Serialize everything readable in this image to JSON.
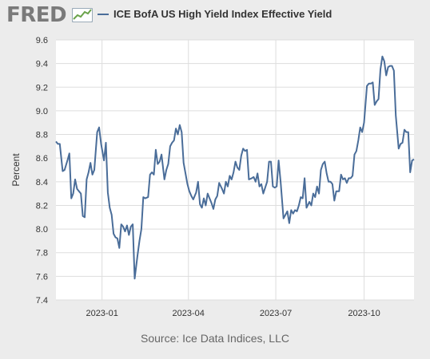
{
  "header": {
    "logo_text": "FRED",
    "legend_label": "ICE BofA US High Yield Index Effective Yield"
  },
  "source_text": "Source: Ice Data Indices, LLC",
  "colors": {
    "line": "#4a6d99",
    "grid": "#dddddd",
    "background": "#ececec",
    "plot": "#ffffff"
  },
  "icons": {
    "logo": "chart-line-icon"
  },
  "chart_data": {
    "type": "line",
    "title": "",
    "xlabel": "",
    "ylabel": "Percent",
    "ylim": [
      7.4,
      9.6
    ],
    "yticks": [
      7.4,
      7.6,
      7.8,
      8.0,
      8.2,
      8.4,
      8.6,
      8.8,
      9.0,
      9.2,
      9.4,
      9.6
    ],
    "xlim": [
      "2022-11-14",
      "2023-11-22"
    ],
    "xticks": [
      "2023-01",
      "2023-04",
      "2023-07",
      "2023-10"
    ],
    "grid": true,
    "series": [
      {
        "name": "ICE BofA US High Yield Index Effective Yield",
        "x": [
          "2022-11-14",
          "2022-11-16",
          "2022-11-18",
          "2022-11-21",
          "2022-11-23",
          "2022-11-26",
          "2022-11-28",
          "2022-11-30",
          "2022-12-02",
          "2022-12-04",
          "2022-12-06",
          "2022-12-08",
          "2022-12-10",
          "2022-12-12",
          "2022-12-14",
          "2022-12-16",
          "2022-12-18",
          "2022-12-20",
          "2022-12-22",
          "2022-12-24",
          "2022-12-27",
          "2022-12-29",
          "2022-12-31",
          "2023-01-03",
          "2023-01-05",
          "2023-01-07",
          "2023-01-09",
          "2023-01-11",
          "2023-01-13",
          "2023-01-15",
          "2023-01-17",
          "2023-01-19",
          "2023-01-21",
          "2023-01-23",
          "2023-01-25",
          "2023-01-27",
          "2023-01-29",
          "2023-01-31",
          "2023-02-02",
          "2023-02-04",
          "2023-02-07",
          "2023-02-09",
          "2023-02-11",
          "2023-02-13",
          "2023-02-15",
          "2023-02-18",
          "2023-02-20",
          "2023-02-22",
          "2023-02-24",
          "2023-02-26",
          "2023-02-28",
          "2023-03-02",
          "2023-03-04",
          "2023-03-07",
          "2023-03-09",
          "2023-03-11",
          "2023-03-13",
          "2023-03-15",
          "2023-03-17",
          "2023-03-19",
          "2023-03-21",
          "2023-03-23",
          "2023-03-25",
          "2023-03-27",
          "2023-03-29",
          "2023-03-31",
          "2023-04-02",
          "2023-04-04",
          "2023-04-06",
          "2023-04-09",
          "2023-04-11",
          "2023-04-13",
          "2023-04-15",
          "2023-04-17",
          "2023-04-19",
          "2023-04-21",
          "2023-04-23",
          "2023-04-25",
          "2023-04-27",
          "2023-04-29",
          "2023-05-01",
          "2023-05-03",
          "2023-05-06",
          "2023-05-08",
          "2023-05-10",
          "2023-05-12",
          "2023-05-14",
          "2023-05-16",
          "2023-05-18",
          "2023-05-20",
          "2023-05-22",
          "2023-05-24",
          "2023-05-26",
          "2023-05-28",
          "2023-05-30",
          "2023-06-01",
          "2023-06-03",
          "2023-06-06",
          "2023-06-08",
          "2023-06-10",
          "2023-06-12",
          "2023-06-14",
          "2023-06-16",
          "2023-06-18",
          "2023-06-20",
          "2023-06-22",
          "2023-06-24",
          "2023-06-26",
          "2023-06-28",
          "2023-06-30",
          "2023-07-02",
          "2023-07-04",
          "2023-07-06",
          "2023-07-09",
          "2023-07-11",
          "2023-07-13",
          "2023-07-15",
          "2023-07-17",
          "2023-07-19",
          "2023-07-21",
          "2023-07-23",
          "2023-07-25",
          "2023-07-27",
          "2023-07-29",
          "2023-07-31",
          "2023-08-02",
          "2023-08-05",
          "2023-08-07",
          "2023-08-09",
          "2023-08-11",
          "2023-08-13",
          "2023-08-15",
          "2023-08-17",
          "2023-08-19",
          "2023-08-21",
          "2023-08-23",
          "2023-08-25",
          "2023-08-27",
          "2023-08-29",
          "2023-08-31",
          "2023-09-02",
          "2023-09-05",
          "2023-09-07",
          "2023-09-09",
          "2023-09-11",
          "2023-09-13",
          "2023-09-15",
          "2023-09-17",
          "2023-09-19",
          "2023-09-21",
          "2023-09-23",
          "2023-09-25",
          "2023-09-27",
          "2023-09-29",
          "2023-10-01",
          "2023-10-04",
          "2023-10-06",
          "2023-10-08",
          "2023-10-10",
          "2023-10-12",
          "2023-10-14",
          "2023-10-16",
          "2023-10-18",
          "2023-10-20",
          "2023-10-22",
          "2023-10-24",
          "2023-10-26",
          "2023-10-28",
          "2023-10-30",
          "2023-11-01",
          "2023-11-03",
          "2023-11-06",
          "2023-11-08",
          "2023-11-10",
          "2023-11-12",
          "2023-11-14",
          "2023-11-16",
          "2023-11-18",
          "2023-11-20",
          "2023-11-22"
        ],
        "values": [
          8.74,
          8.72,
          8.72,
          8.49,
          8.5,
          8.58,
          8.64,
          8.26,
          8.3,
          8.42,
          8.34,
          8.32,
          8.3,
          8.11,
          8.1,
          8.42,
          8.48,
          8.56,
          8.46,
          8.5,
          8.82,
          8.86,
          8.72,
          8.58,
          8.73,
          8.31,
          8.18,
          8.12,
          7.96,
          7.93,
          7.92,
          7.84,
          8.04,
          8.02,
          7.98,
          8.03,
          7.95,
          8.02,
          8.04,
          7.58,
          7.78,
          7.9,
          8.0,
          8.27,
          8.26,
          8.27,
          8.46,
          8.48,
          8.46,
          8.67,
          8.55,
          8.57,
          8.63,
          8.42,
          8.5,
          8.55,
          8.7,
          8.73,
          8.75,
          8.85,
          8.8,
          8.88,
          8.82,
          8.56,
          8.47,
          8.38,
          8.32,
          8.28,
          8.25,
          8.31,
          8.4,
          8.21,
          8.18,
          8.26,
          8.2,
          8.3,
          8.26,
          8.22,
          8.17,
          8.25,
          8.28,
          8.39,
          8.34,
          8.3,
          8.4,
          8.36,
          8.45,
          8.42,
          8.48,
          8.57,
          8.52,
          8.5,
          8.62,
          8.68,
          8.66,
          8.67,
          8.42,
          8.43,
          8.44,
          8.4,
          8.47,
          8.36,
          8.38,
          8.3,
          8.35,
          8.4,
          8.57,
          8.57,
          8.36,
          8.35,
          8.36,
          8.58,
          8.4,
          8.09,
          8.12,
          8.15,
          8.05,
          8.16,
          8.13,
          8.16,
          8.15,
          8.2,
          8.27,
          8.26,
          8.43,
          8.18,
          8.23,
          8.2,
          8.3,
          8.27,
          8.36,
          8.3,
          8.5,
          8.55,
          8.57,
          8.47,
          8.4,
          8.4,
          8.38,
          8.24,
          8.32,
          8.32,
          8.46,
          8.42,
          8.43,
          8.39,
          8.43,
          8.43,
          8.45,
          8.63,
          8.66,
          8.75,
          8.86,
          8.82,
          8.9,
          9.21,
          9.23,
          9.23,
          9.24,
          9.05,
          9.08,
          9.1,
          9.35,
          9.46,
          9.42,
          9.3,
          9.37,
          9.38,
          9.38,
          9.34,
          8.96,
          8.68,
          8.72,
          8.73,
          8.84,
          8.82,
          8.82,
          8.48,
          8.58,
          8.59
        ]
      }
    ]
  }
}
